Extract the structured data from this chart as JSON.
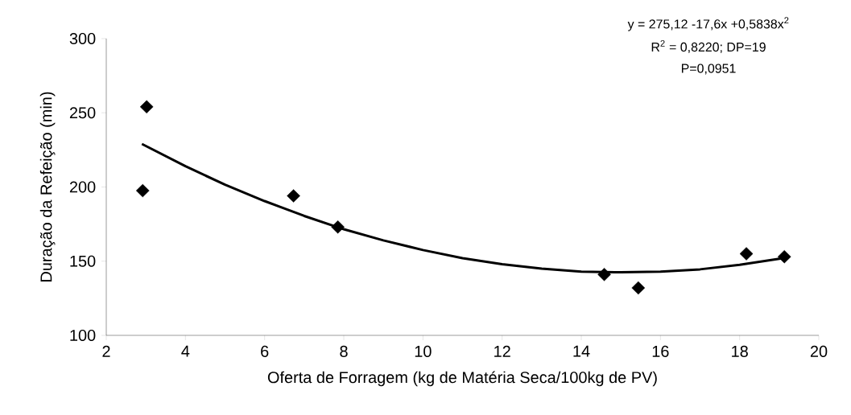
{
  "chart_data": {
    "type": "scatter",
    "xlabel": "Oferta de Forragem (kg de Matéria Seca/100kg de PV)",
    "ylabel": "Duração da Refeição (min)",
    "annotations": [
      "y = 275,12 -17,6x +0,5838x$^{2}$",
      "R$^{2}$ = 0,8220; DP=19",
      "P=0,0951"
    ],
    "xlim": [
      2,
      20
    ],
    "ylim": [
      100,
      300
    ],
    "xticks": [
      2,
      4,
      6,
      8,
      10,
      12,
      14,
      16,
      18,
      20
    ],
    "yticks": [
      100,
      150,
      200,
      250,
      300
    ],
    "series": [
      {
        "color": "#000000",
        "marker": "diamond",
        "x": [
          2.92,
          3.02,
          6.73,
          7.85,
          14.58,
          15.44,
          18.17,
          19.13
        ],
        "values": [
          197.5,
          254,
          194,
          173,
          141,
          132,
          155,
          153
        ]
      },
      {
        "type": "line",
        "color": "#000000",
        "marker": "none",
        "line_style": "solid",
        "x": [
          2.9,
          4,
          5,
          6,
          7,
          8,
          9,
          10,
          11,
          12,
          13,
          14,
          15,
          16,
          17,
          18,
          19.1
        ],
        "values": [
          229,
          214,
          201.5,
          190.5,
          180.5,
          171.5,
          164,
          157.5,
          152,
          148,
          145,
          143,
          142.5,
          143,
          144.5,
          147.5,
          152
        ]
      }
    ]
  }
}
